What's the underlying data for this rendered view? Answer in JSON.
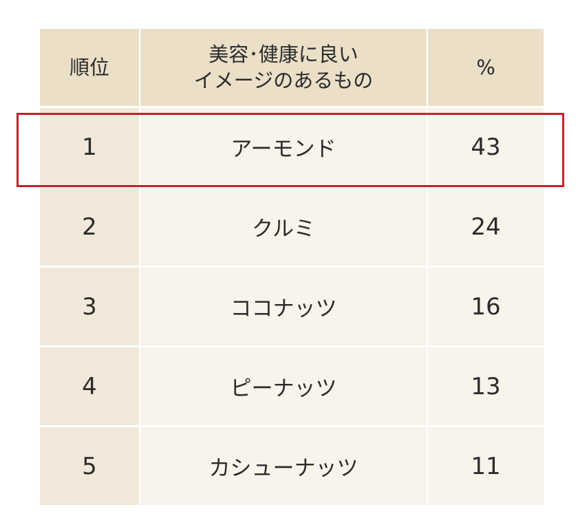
{
  "chart_data": {
    "type": "table",
    "columns": [
      "順位",
      "美容･健康に良い\nイメージのあるもの",
      "%"
    ],
    "rows": [
      {
        "rank": "1",
        "item": "アーモンド",
        "percent": "43"
      },
      {
        "rank": "2",
        "item": "クルミ",
        "percent": "24"
      },
      {
        "rank": "3",
        "item": "ココナッツ",
        "percent": "16"
      },
      {
        "rank": "4",
        "item": "ピーナッツ",
        "percent": "13"
      },
      {
        "rank": "5",
        "item": "カシューナッツ",
        "percent": "11"
      }
    ],
    "highlighted_row_index": 0,
    "colors": {
      "header_bg": "#ebdfc8",
      "rank_col_bg": "#f1e8d9",
      "body_bg": "#f8f3eb",
      "highlight_border": "#c81e2d"
    }
  }
}
